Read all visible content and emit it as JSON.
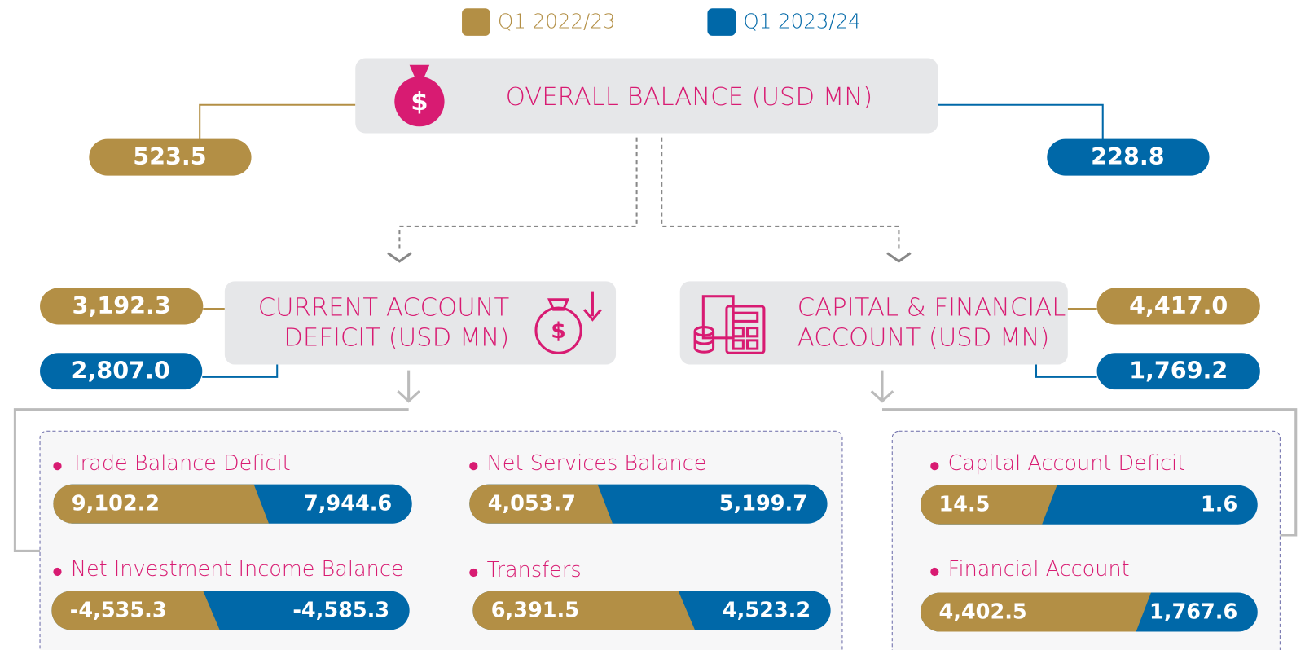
{
  "legend": [
    "Q1 2022/23",
    "Q1 2023/24"
  ],
  "overall": {
    "title": "OVERALL BALANCE (USD MN)",
    "values": [
      "523.5",
      "228.8"
    ]
  },
  "current_account": {
    "title": [
      "CURRENT ACCOUNT",
      "DEFICIT (USD MN)"
    ],
    "values": [
      "3,192.3",
      "2,807.0"
    ],
    "items": [
      {
        "label": "Trade Balance Deficit",
        "values": [
          "9,102.2",
          "7,944.6"
        ]
      },
      {
        "label": "Net Services Balance",
        "values": [
          "4,053.7",
          "5,199.7"
        ]
      },
      {
        "label": "Net Investment Income Balance",
        "values": [
          "-4,535.3",
          "-4,585.3"
        ]
      },
      {
        "label": "Transfers",
        "values": [
          "6,391.5",
          "4,523.2"
        ]
      }
    ]
  },
  "capital_financial": {
    "title": [
      "CAPITAL & FINANCIAL",
      "ACCOUNT (USD MN)"
    ],
    "values": [
      "4,417.0",
      "1,769.2"
    ],
    "items": [
      {
        "label": "Capital Account Deficit",
        "values": [
          "14.5",
          "1.6"
        ]
      },
      {
        "label": "Financial Account",
        "values": [
          "4,402.5",
          "1,767.6"
        ]
      }
    ]
  }
}
